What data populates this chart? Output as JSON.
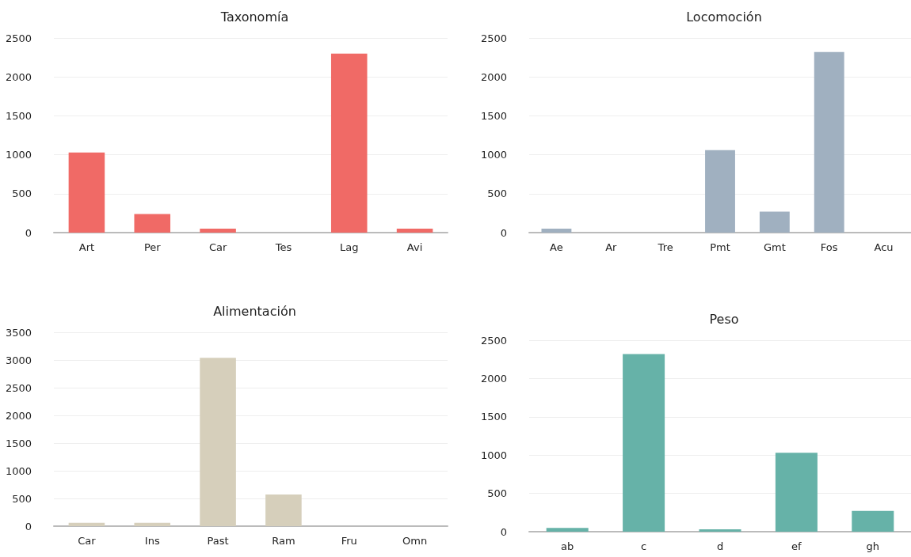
{
  "chart_data": [
    {
      "type": "bar",
      "title": "Taxonomía",
      "categories": [
        "Art",
        "Per",
        "Car",
        "Tes",
        "Lag",
        "Avi"
      ],
      "values": [
        1030,
        240,
        50,
        0,
        2300,
        50
      ],
      "color": "#f06a66",
      "ylim": [
        0,
        2500
      ],
      "yticks": [
        0,
        500,
        1000,
        1500,
        2000,
        2500
      ],
      "grid": "y"
    },
    {
      "type": "bar",
      "title": "Locomoción",
      "categories": [
        "Ae",
        "Ar",
        "Tre",
        "Pmt",
        "Gmt",
        "Fos",
        "Acu"
      ],
      "values": [
        50,
        0,
        0,
        1060,
        270,
        2320,
        0
      ],
      "color": "#a0b0c0",
      "ylim": [
        0,
        2500
      ],
      "yticks": [
        0,
        500,
        1000,
        1500,
        2000,
        2500
      ],
      "grid": "y"
    },
    {
      "type": "bar",
      "title": "Alimentación",
      "categories": [
        "Car",
        "Ins",
        "Past",
        "Ram",
        "Fru",
        "Omn"
      ],
      "values": [
        60,
        60,
        3040,
        570,
        0,
        0
      ],
      "color": "#d6cfbb",
      "ylim": [
        0,
        3500
      ],
      "yticks": [
        0,
        500,
        1000,
        1500,
        2000,
        2500,
        3000,
        3500
      ],
      "grid": "y"
    },
    {
      "type": "bar",
      "title": "Peso",
      "categories": [
        "ab",
        "c",
        "d",
        "ef",
        "gh"
      ],
      "values": [
        50,
        2320,
        30,
        1030,
        270
      ],
      "color": "#66b2a8",
      "ylim": [
        0,
        2500
      ],
      "yticks": [
        0,
        500,
        1000,
        1500,
        2000,
        2500
      ],
      "grid": "y"
    }
  ]
}
